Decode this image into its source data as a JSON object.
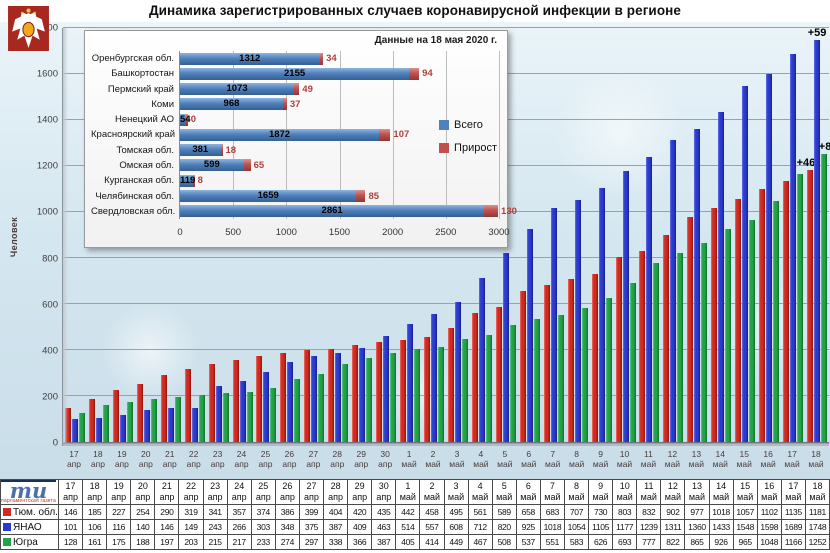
{
  "title": "Динамика зарегистрированных случаев коронавирусной инфекции в регионе",
  "logo_ti": {
    "letters": "ти",
    "subtitle": "парламентская газета"
  },
  "colors": {
    "background_tint": "#d5e7f0",
    "gridline": "#94a3ae",
    "inset_total": "#4f81bd",
    "inset_increment": "#c0504d"
  },
  "chart_data": [
    {
      "type": "bar",
      "title": "Динамика зарегистрированных случаев коронавирусной инфекции в регионе",
      "xlabel": "",
      "ylabel": "Человек",
      "ylim": [
        0,
        1800
      ],
      "ytick_step": 200,
      "grid": true,
      "legend_position": "table-below",
      "categories": [
        "17 апр",
        "18 апр",
        "19 апр",
        "20 апр",
        "21 апр",
        "22 апр",
        "23 апр",
        "24 апр",
        "25 апр",
        "26 апр",
        "27 апр",
        "28 апр",
        "29 апр",
        "30 апр",
        "1 май",
        "2 май",
        "3 май",
        "4 май",
        "5 май",
        "6 май",
        "7 май",
        "8 май",
        "9 май",
        "10 май",
        "11 май",
        "12 май",
        "13 май",
        "14 май",
        "15 май",
        "16 май",
        "17 май",
        "18 май"
      ],
      "series": [
        {
          "name": "Тюм. обл.",
          "color": "#d02a20",
          "color_light": "#ee6e62",
          "color_dark": "#8f150e",
          "increment_label": "+46",
          "values": [
            146,
            185,
            227,
            254,
            290,
            319,
            341,
            357,
            374,
            386,
            399,
            404,
            420,
            435,
            442,
            458,
            495,
            561,
            589,
            658,
            683,
            707,
            730,
            803,
            832,
            902,
            977,
            1018,
            1057,
            1102,
            1135,
            1181
          ]
        },
        {
          "name": "ЯНАО",
          "color": "#2b3ace",
          "color_light": "#6472e8",
          "color_dark": "#161f86",
          "increment_label": "+59",
          "values": [
            101,
            106,
            116,
            140,
            146,
            149,
            243,
            266,
            303,
            348,
            375,
            387,
            409,
            463,
            514,
            557,
            608,
            712,
            820,
            925,
            1018,
            1054,
            1105,
            1177,
            1239,
            1311,
            1360,
            1433,
            1548,
            1598,
            1689,
            1748
          ]
        },
        {
          "name": "Югра",
          "color": "#22a147",
          "color_light": "#5cc878",
          "color_dark": "#0f6e2b",
          "increment_label": "+86",
          "values": [
            128,
            161,
            175,
            188,
            197,
            203,
            215,
            217,
            233,
            274,
            297,
            338,
            366,
            387,
            405,
            414,
            449,
            467,
            508,
            537,
            551,
            583,
            626,
            693,
            777,
            822,
            865,
            926,
            965,
            1048,
            1166,
            1252
          ]
        }
      ]
    },
    {
      "type": "bar-horizontal",
      "note": "Данные на 18 мая 2020 г.",
      "xlim": [
        0,
        3000
      ],
      "xticks": [
        0,
        500,
        1000,
        1500,
        2000,
        2500,
        3000
      ],
      "grid": true,
      "legend_position": "right-inside",
      "categories": [
        "Оренбургская обл.",
        "Башкортостан",
        "Пермский край",
        "Коми",
        "Ненецкий АО",
        "Красноярский край",
        "Томская обл.",
        "Омская обл.",
        "Курганская обл.",
        "Челябинская обл.",
        "Свердловская обл."
      ],
      "series": [
        {
          "name": "Всего",
          "color": "#4f81bd",
          "color_light": "#8fb4de",
          "color_dark": "#365f91",
          "values": [
            1312,
            2155,
            1073,
            968,
            54,
            1872,
            381,
            599,
            119,
            1659,
            2861
          ]
        },
        {
          "name": "Прирост",
          "color": "#c0504d",
          "color_light": "#d89390",
          "color_dark": "#8c3836",
          "values": [
            34,
            94,
            49,
            37,
            0,
            107,
            18,
            65,
            8,
            85,
            130
          ]
        }
      ]
    }
  ]
}
